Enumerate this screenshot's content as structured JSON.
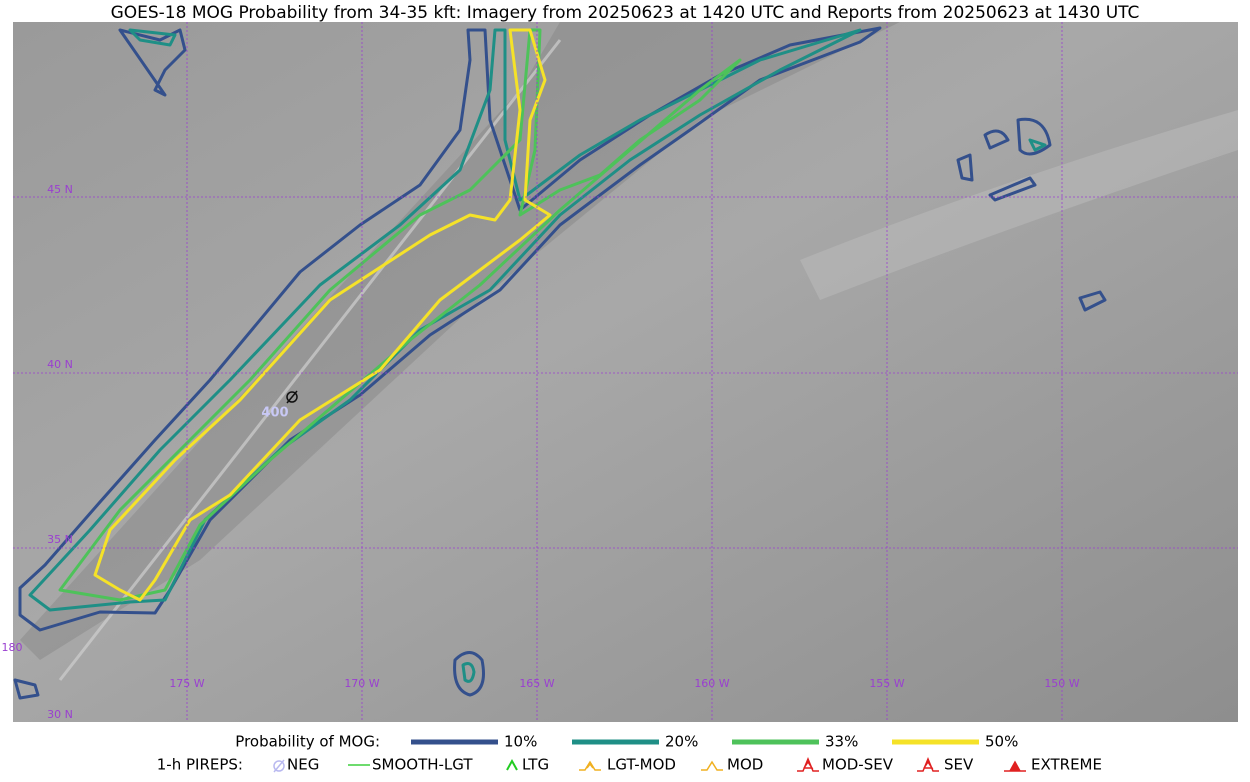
{
  "title": "GOES-18 MOG Probability from 34-35 kft: Imagery from 20250623 at 1420 UTC and Reports from 20250623 at 1430 UTC",
  "map": {
    "lat_labels": [
      "45 N",
      "40 N",
      "35 N",
      "30 N"
    ],
    "lon_labels": [
      "180",
      "175 W",
      "170 W",
      "165 W",
      "160 W",
      "155 W",
      "150 W"
    ],
    "reports": [
      {
        "label": "400"
      }
    ]
  },
  "legend": {
    "probability": {
      "title": "Probability of MOG:",
      "items": [
        {
          "label": "10%",
          "color": "#34508c"
        },
        {
          "label": "20%",
          "color": "#1f8f86"
        },
        {
          "label": "33%",
          "color": "#4ec25a"
        },
        {
          "label": "50%",
          "color": "#f5e228"
        }
      ]
    },
    "pireps": {
      "title": "1-h PIREPS:",
      "items": [
        {
          "label": "NEG",
          "color": "#b9b9f0"
        },
        {
          "label": "SMOOTH-LGT",
          "color": "#3fcf3f"
        },
        {
          "label": "LTG",
          "color": "#22cc22"
        },
        {
          "label": "LGT-MOD",
          "color": "#f0b020"
        },
        {
          "label": "MOD",
          "color": "#f0b020"
        },
        {
          "label": "MOD-SEV",
          "color": "#e02020"
        },
        {
          "label": "SEV",
          "color": "#e02020"
        },
        {
          "label": "EXTREME",
          "color": "#e02020"
        }
      ]
    }
  }
}
